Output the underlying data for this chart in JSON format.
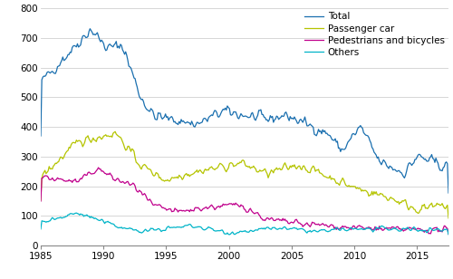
{
  "xlim": [
    1985,
    2017.5
  ],
  "ylim": [
    0,
    800
  ],
  "yticks": [
    0,
    100,
    200,
    300,
    400,
    500,
    600,
    700,
    800
  ],
  "xticks": [
    1985,
    1990,
    1995,
    2000,
    2005,
    2010,
    2015
  ],
  "colors": {
    "total": "#1a6faf",
    "passenger": "#b5c400",
    "pedestrians": "#c0008c",
    "others": "#00b4c8"
  },
  "legend_labels": [
    "Total",
    "Passenger car",
    "Pedestrians and bicycles",
    "Others"
  ],
  "grid_color": "#d0d0d0",
  "bg_color": "#ffffff",
  "linewidth": 0.9,
  "tick_fontsize": 7.5,
  "legend_fontsize": 7.5
}
